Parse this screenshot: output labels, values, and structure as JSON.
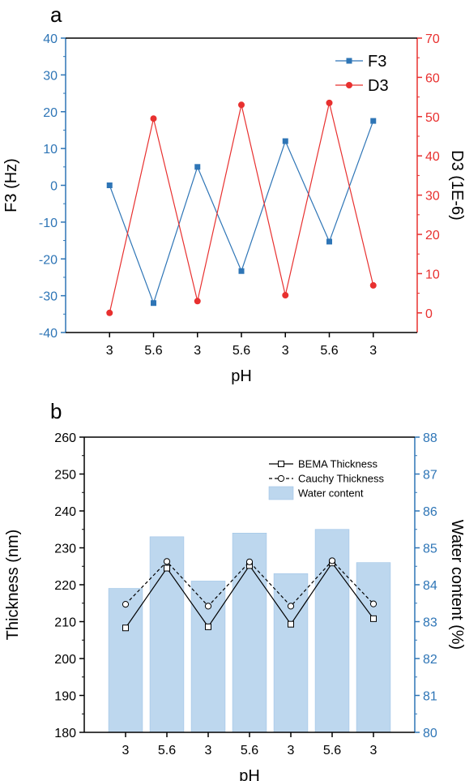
{
  "chart_data": [
    {
      "panel_label": "a",
      "type": "line",
      "categories": [
        "3",
        "5.6",
        "3",
        "5.6",
        "3",
        "5.6",
        "3"
      ],
      "xlabel": "pH",
      "ylabel": "F3 (Hz)",
      "ylabel_right": "D3 (1E-6)",
      "ylim": [
        -40,
        40
      ],
      "ylim_right": [
        -5,
        70
      ],
      "yticks": [
        -40,
        -30,
        -20,
        -10,
        0,
        10,
        20,
        30,
        40
      ],
      "yticks_right": [
        0,
        10,
        20,
        30,
        40,
        50,
        60,
        70
      ],
      "grid": false,
      "legend_position": "top-right",
      "series": [
        {
          "name": "F3",
          "axis": "left",
          "marker": "square",
          "color": "#2e75b6",
          "values": [
            0,
            -32,
            5,
            -23.3,
            12,
            -15.3,
            17.5
          ]
        },
        {
          "name": "D3",
          "axis": "right",
          "marker": "circle",
          "color": "#e8302f",
          "values": [
            0,
            49.5,
            3,
            53,
            4.5,
            53.5,
            7
          ]
        }
      ]
    },
    {
      "panel_label": "b",
      "type": "bar",
      "categories": [
        "3",
        "5.6",
        "3",
        "5.6",
        "3",
        "5.6",
        "3"
      ],
      "xlabel": "pH",
      "ylabel": "Thickness (nm)",
      "ylabel_right": "Water content (%)",
      "ylim": [
        180,
        260
      ],
      "ylim_right": [
        80,
        88
      ],
      "yticks": [
        180,
        190,
        200,
        210,
        220,
        230,
        240,
        250,
        260
      ],
      "yticks_right": [
        80,
        81,
        82,
        83,
        84,
        85,
        86,
        87,
        88
      ],
      "grid": false,
      "legend_position": "top-right",
      "series": [
        {
          "name": "BEMA Thickness",
          "axis": "left",
          "kind": "line",
          "line_style": "solid",
          "marker": "open-square",
          "color": "#000000",
          "values": [
            208.3,
            224.5,
            208.6,
            225.2,
            209.3,
            225.9,
            210.8
          ]
        },
        {
          "name": "Cauchy Thickness",
          "axis": "left",
          "kind": "line",
          "line_style": "dashed",
          "marker": "open-circle",
          "color": "#000000",
          "values": [
            214.7,
            226.3,
            214.2,
            226.2,
            214.2,
            226.5,
            214.8
          ]
        },
        {
          "name": "Water content",
          "axis": "right",
          "kind": "bar",
          "color": "#bdd7ee",
          "values": [
            83.9,
            85.3,
            84.1,
            85.4,
            84.3,
            85.5,
            84.6
          ]
        }
      ]
    }
  ]
}
